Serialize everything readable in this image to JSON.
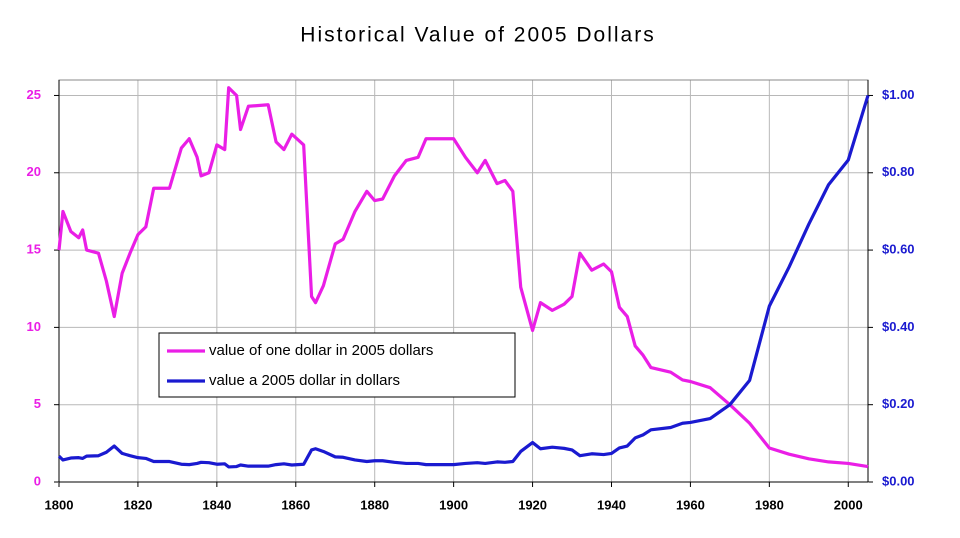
{
  "chart_data": {
    "type": "line",
    "title": "Historical Value of 2005 Dollars",
    "x": [
      1800,
      1801,
      1803,
      1805,
      1806,
      1807,
      1810,
      1812,
      1814,
      1816,
      1818,
      1820,
      1822,
      1824,
      1828,
      1831,
      1833,
      1835,
      1836,
      1838,
      1840,
      1842,
      1843,
      1845,
      1846,
      1848,
      1853,
      1855,
      1857,
      1859,
      1862,
      1864,
      1865,
      1867,
      1870,
      1872,
      1875,
      1878,
      1880,
      1882,
      1885,
      1888,
      1891,
      1893,
      1900,
      1903,
      1906,
      1908,
      1911,
      1913,
      1915,
      1917,
      1920,
      1922,
      1925,
      1928,
      1930,
      1932,
      1935,
      1938,
      1940,
      1942,
      1944,
      1946,
      1948,
      1950,
      1955,
      1958,
      1960,
      1965,
      1970,
      1975,
      1980,
      1985,
      1990,
      1995,
      2000,
      2005
    ],
    "series": [
      {
        "name": "value of one dollar in 2005 dollars",
        "color": "#ea1ee6",
        "values": [
          15,
          17.5,
          16.2,
          15.8,
          16.3,
          15,
          14.8,
          13,
          10.7,
          13.5,
          14.8,
          16,
          16.5,
          19,
          19,
          21.6,
          22.2,
          21,
          19.8,
          20,
          21.8,
          21.5,
          25.5,
          25,
          22.8,
          24.3,
          24.4,
          22,
          21.5,
          22.5,
          21.8,
          12,
          11.6,
          12.7,
          15.4,
          15.7,
          17.5,
          18.8,
          18.2,
          18.3,
          19.8,
          20.8,
          21,
          22.2,
          22.2,
          21,
          20,
          20.8,
          19.3,
          19.5,
          18.8,
          12.6,
          9.8,
          11.6,
          11.1,
          11.5,
          12,
          14.8,
          13.7,
          14.1,
          13.6,
          11.3,
          10.7,
          8.8,
          8.2,
          7.4,
          7.1,
          6.6,
          6.5,
          6.1,
          5.0,
          3.8,
          2.2,
          1.8,
          1.5,
          1.3,
          1.2,
          1.0
        ]
      },
      {
        "name": "value a 2005 dollar in dollars",
        "color": "#1a1ad0",
        "axis": "y2",
        "values": [
          0.067,
          0.057,
          0.062,
          0.063,
          0.061,
          0.067,
          0.068,
          0.077,
          0.093,
          0.074,
          0.068,
          0.063,
          0.061,
          0.053,
          0.053,
          0.046,
          0.045,
          0.048,
          0.051,
          0.05,
          0.046,
          0.047,
          0.039,
          0.04,
          0.044,
          0.041,
          0.041,
          0.045,
          0.047,
          0.044,
          0.046,
          0.083,
          0.086,
          0.079,
          0.065,
          0.064,
          0.057,
          0.053,
          0.055,
          0.055,
          0.051,
          0.048,
          0.048,
          0.045,
          0.045,
          0.048,
          0.05,
          0.048,
          0.052,
          0.051,
          0.053,
          0.079,
          0.102,
          0.086,
          0.09,
          0.087,
          0.083,
          0.068,
          0.073,
          0.071,
          0.074,
          0.088,
          0.093,
          0.114,
          0.122,
          0.135,
          0.141,
          0.152,
          0.154,
          0.164,
          0.2,
          0.263,
          0.455,
          0.556,
          0.667,
          0.769,
          0.833,
          1.0
        ]
      }
    ],
    "xlim": [
      1800,
      2005
    ],
    "xticks": [
      1800,
      1820,
      1840,
      1860,
      1880,
      1900,
      1920,
      1940,
      1960,
      1980,
      2000
    ],
    "ylim": [
      0,
      26
    ],
    "yticks": [
      0,
      5,
      10,
      15,
      20,
      25
    ],
    "y2lim": [
      0,
      1.04
    ],
    "y2ticks": [
      {
        "value": 0,
        "label": "$0.00"
      },
      {
        "value": 0.2,
        "label": "$0.20"
      },
      {
        "value": 0.4,
        "label": "$0.40"
      },
      {
        "value": 0.6,
        "label": "$0.60"
      },
      {
        "value": 0.8,
        "label": "$0.80"
      },
      {
        "value": 1.0,
        "label": "$1.00"
      }
    ],
    "grid": true,
    "legend": "center left"
  }
}
